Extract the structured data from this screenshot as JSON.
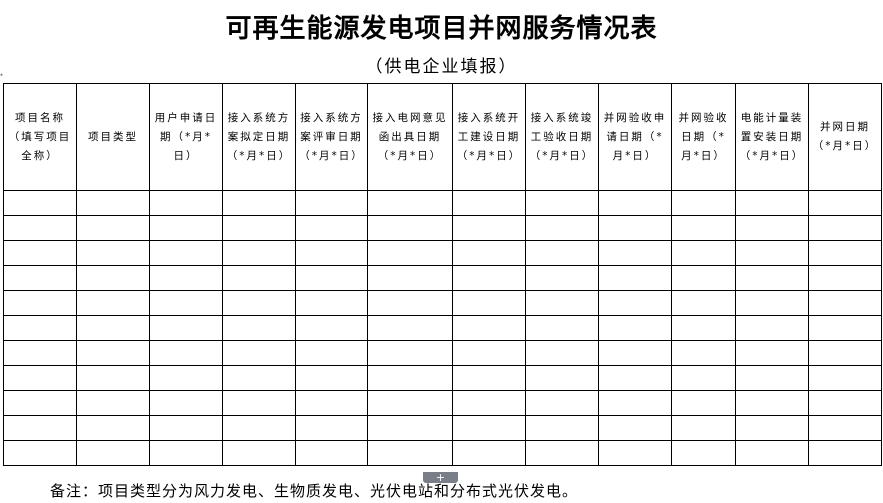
{
  "title": "可再生能源发电项目并网服务情况表",
  "subtitle": "（供电企业填报）",
  "columns": [
    "项目名称（填写项目全称）",
    "项目类型",
    "用户申请日期（*月*日）",
    "接入系统方案拟定日期（*月*日）",
    "接入系统方案评审日期（*月*日）",
    "接入电网意见函出具日期（*月*日）",
    "接入系统开工建设日期（*月*日）",
    "接入系统竣工验收日期（*月*日）",
    "并网验收申请日期（*月*日）",
    "并网验收日期（*月*日）",
    "电能计量装置安装日期（*月*日）",
    "并网日期（*月*日）"
  ],
  "note": "备注：项目类型分为风力发电、生物质发电、光伏电站和分布式光伏发电。",
  "add_row_label": "+"
}
